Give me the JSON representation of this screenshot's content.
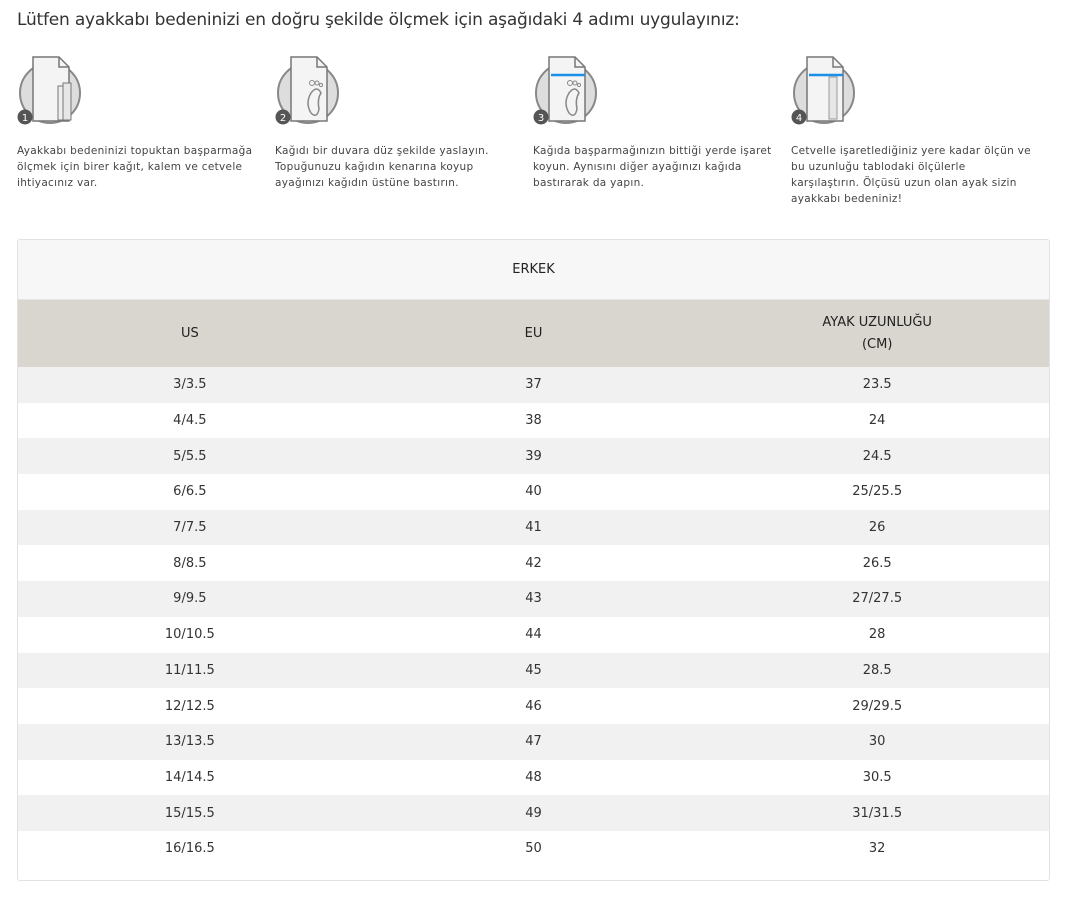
{
  "title": "Lütfen ayakkabı bedeninizi en doğru şekilde ölçmek için aşağıdaki 4 adımı uygulayınız:",
  "steps": [
    {
      "number": "1",
      "icon": "paper-ruler-pencil-icon",
      "text": "Ayakkabı bedeninizi topuktan başparmağa ölçmek için birer kağıt, kalem ve cetvele ihtiyacınız var."
    },
    {
      "number": "2",
      "icon": "foot-on-paper-icon",
      "text": "Kağıdı bir duvara düz şekilde yaslayın. Topuğunuzu kağıdın kenarına koyup ayağınızı kağıdın üstüne bastırın."
    },
    {
      "number": "3",
      "icon": "foot-mark-icon",
      "text": "Kağıda başparmağınızın bittiği yerde işaret koyun. Aynısını diğer ayağınızı kağıda bastırarak da yapın."
    },
    {
      "number": "4",
      "icon": "ruler-measure-icon",
      "text": "Cetvelle işaretlediğiniz yere kadar ölçün ve bu uzunluğu tablodaki ölçülerle karşılaştırın. Ölçüsü uzun olan ayak sizin ayakkabı bedeniniz!"
    }
  ],
  "accent": "#1a8fe8",
  "table": {
    "caption": "ERKEK",
    "headers": [
      "US",
      "EU",
      "AYAK UZUNLUĞU (CM)"
    ],
    "rows": [
      [
        "3/3.5",
        "37",
        "23.5"
      ],
      [
        "4/4.5",
        "38",
        "24"
      ],
      [
        "5/5.5",
        "39",
        "24.5"
      ],
      [
        "6/6.5",
        "40",
        "25/25.5"
      ],
      [
        "7/7.5",
        "41",
        "26"
      ],
      [
        "8/8.5",
        "42",
        "26.5"
      ],
      [
        "9/9.5",
        "43",
        "27/27.5"
      ],
      [
        "10/10.5",
        "44",
        "28"
      ],
      [
        "11/11.5",
        "45",
        "28.5"
      ],
      [
        "12/12.5",
        "46",
        "29/29.5"
      ],
      [
        "13/13.5",
        "47",
        "30"
      ],
      [
        "14/14.5",
        "48",
        "30.5"
      ],
      [
        "15/15.5",
        "49",
        "31/31.5"
      ],
      [
        "16/16.5",
        "50",
        "32"
      ]
    ]
  }
}
